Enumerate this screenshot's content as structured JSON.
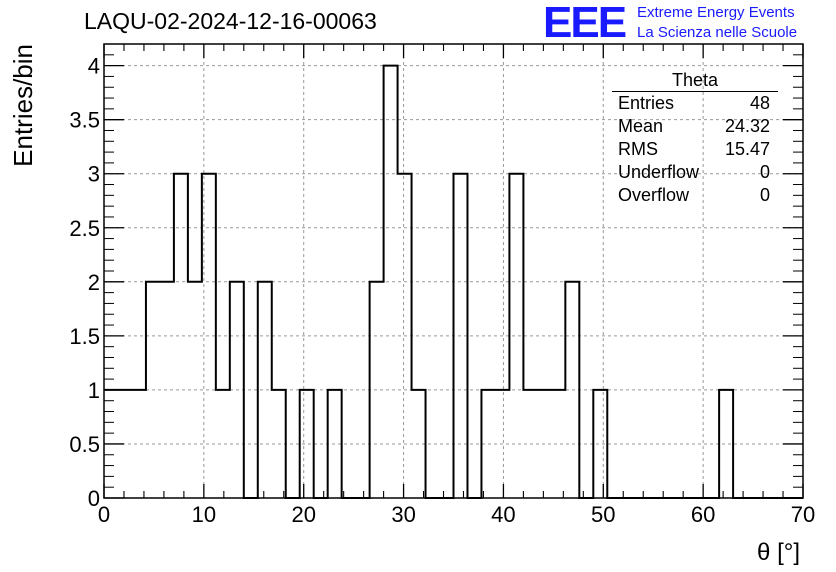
{
  "title": "LAQU-02-2024-12-16-00063",
  "logo": {
    "mark": "EEE",
    "line1": "Extreme Energy Events",
    "line2": "La Scienza nelle Scuole",
    "color": "#1a1aff"
  },
  "stats_box": {
    "title": "Theta",
    "rows": [
      {
        "label": "Entries",
        "value": "48"
      },
      {
        "label": "Mean",
        "value": "24.32"
      },
      {
        "label": "RMS",
        "value": "15.47"
      },
      {
        "label": "Underflow",
        "value": "0"
      },
      {
        "label": "Overflow",
        "value": "0"
      }
    ]
  },
  "chart_data": {
    "type": "histogram",
    "xlabel": "θ [°]",
    "ylabel": "Entries/bin",
    "xlim": [
      0,
      70
    ],
    "ylim": [
      0,
      4.2
    ],
    "x_ticks": [
      "0",
      "10",
      "20",
      "30",
      "40",
      "50",
      "60",
      "70"
    ],
    "y_ticks": [
      "0",
      "0.5",
      "1",
      "1.5",
      "2",
      "2.5",
      "3",
      "3.5",
      "4"
    ],
    "grid": true,
    "bin_width": 1.4,
    "bin_edges_start": 0,
    "values": [
      1,
      1,
      1,
      2,
      2,
      3,
      2,
      3,
      1,
      2,
      0,
      2,
      1,
      0,
      1,
      0,
      1,
      0,
      0,
      2,
      4,
      3,
      1,
      0,
      0,
      3,
      0,
      1,
      1,
      3,
      1,
      1,
      1,
      2,
      0,
      1,
      0,
      0,
      0,
      0,
      0,
      0,
      0,
      0,
      1,
      0,
      0,
      0,
      0,
      0
    ]
  }
}
